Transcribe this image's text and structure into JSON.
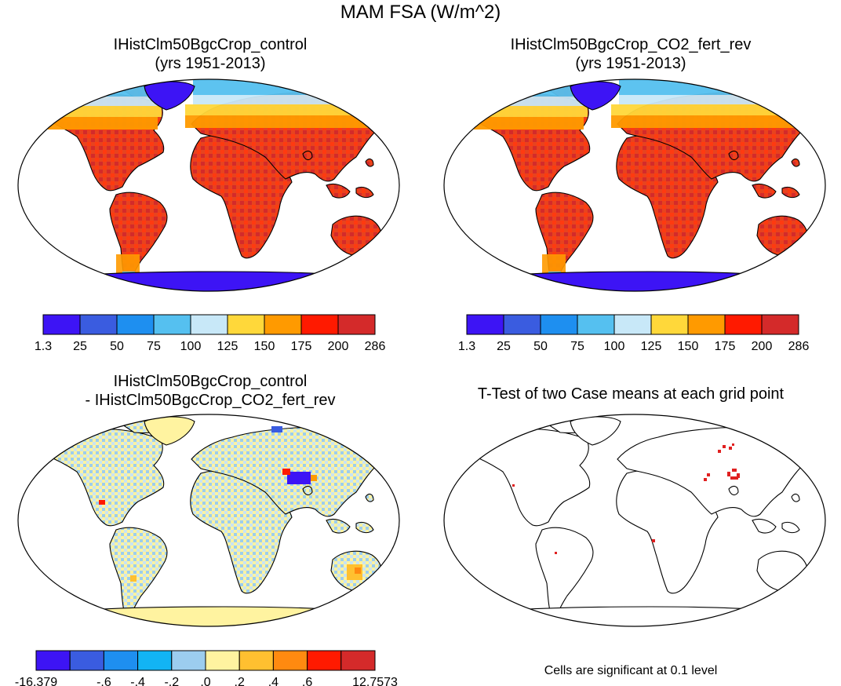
{
  "main_title": "MAM FSA (W/m^2)",
  "panels": [
    {
      "id": "control",
      "title_line1": "IHistClm50BgcCrop_control",
      "title_line2": "(yrs 1951-2013)",
      "type": "absolute"
    },
    {
      "id": "co2",
      "title_line1": "IHistClm50BgcCrop_CO2_fert_rev",
      "title_line2": "(yrs 1951-2013)",
      "type": "absolute"
    },
    {
      "id": "diff",
      "title_line1": "IHistClm50BgcCrop_control",
      "title_line2": "- IHistClm50BgcCrop_CO2_fert_rev",
      "type": "difference"
    },
    {
      "id": "ttest",
      "title_line1": "T-Test of two Case means at each grid point",
      "title_line2": "",
      "type": "significance"
    }
  ],
  "colorbar_abs": {
    "colors": [
      "#3d14f5",
      "#3a5ce0",
      "#1e8ff0",
      "#55c0f0",
      "#c8e8f8",
      "#ffd83a",
      "#ff9a00",
      "#ff1a00",
      "#d42a2a"
    ],
    "labels": [
      "1.3",
      "25",
      "50",
      "75",
      "100",
      "125",
      "150",
      "175",
      "200",
      "286"
    ]
  },
  "colorbar_diff": {
    "colors": [
      "#3d14f5",
      "#3a5ce0",
      "#1e8ff0",
      "#12b4f4",
      "#9ccdef",
      "#fff3a0",
      "#ffc030",
      "#ff8a10",
      "#ff1a00",
      "#d42a2a"
    ],
    "labels": [
      "-16.379",
      "",
      "-.6",
      "-.4",
      "-.2",
      ".0",
      ".2",
      ".4",
      ".6",
      "",
      "12.7573"
    ]
  },
  "footnote": "Cells are significant at 0.1 level"
}
